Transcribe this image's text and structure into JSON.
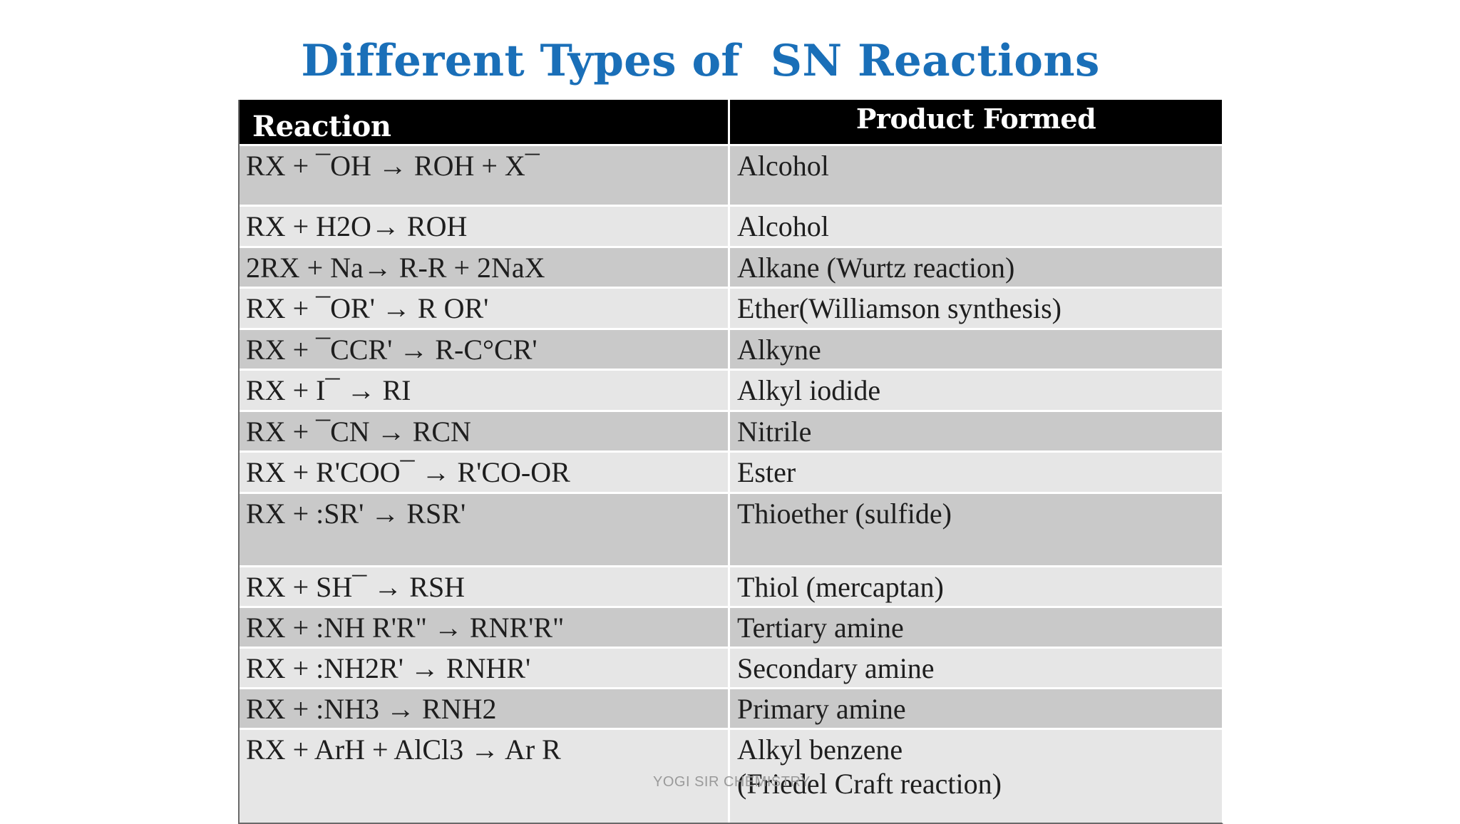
{
  "title": "Different Types of  SN Reactions",
  "header": {
    "reaction": "Reaction",
    "product": "Product Formed"
  },
  "rows": [
    {
      "reaction": "RX + ¯OH → ROH + X¯",
      "product": "Alcohol"
    },
    {
      "reaction": "RX + H2O→ ROH",
      "product": "Alcohol"
    },
    {
      "reaction": "2RX + Na→ R-R + 2NaX",
      "product": "Alkane (Wurtz reaction)"
    },
    {
      "reaction": "RX + ¯OR' → R OR'",
      "product": "Ether(Williamson synthesis)"
    },
    {
      "reaction": "RX + ¯CCR' → R-C°CR'",
      "product": "Alkyne"
    },
    {
      "reaction": "RX + I¯ → RI",
      "product": "Alkyl iodide"
    },
    {
      "reaction": "RX + ¯CN → RCN",
      "product": "Nitrile"
    },
    {
      "reaction": "RX + R'COO¯ → R'CO-OR",
      "product": "Ester"
    },
    {
      "reaction": "RX + :SR' → RSR'",
      "product": "Thioether (sulfide)"
    },
    {
      "reaction": "RX + SH¯ → RSH",
      "product": "Thiol (mercaptan)"
    },
    {
      "reaction": "RX + :NH R'R\" → RNR'R\"",
      "product": "Tertiary amine"
    },
    {
      "reaction": "RX + :NH2R' → RNHR'",
      "product": "Secondary amine"
    },
    {
      "reaction": "RX + :NH3 → RNH2",
      "product": "Primary amine"
    },
    {
      "reaction": "RX + ArH + AlCl3 → Ar R",
      "product": "Alkyl benzene\n(Friedel Craft reaction)"
    }
  ],
  "footer": "YOGI SIR CHEMISTRY"
}
